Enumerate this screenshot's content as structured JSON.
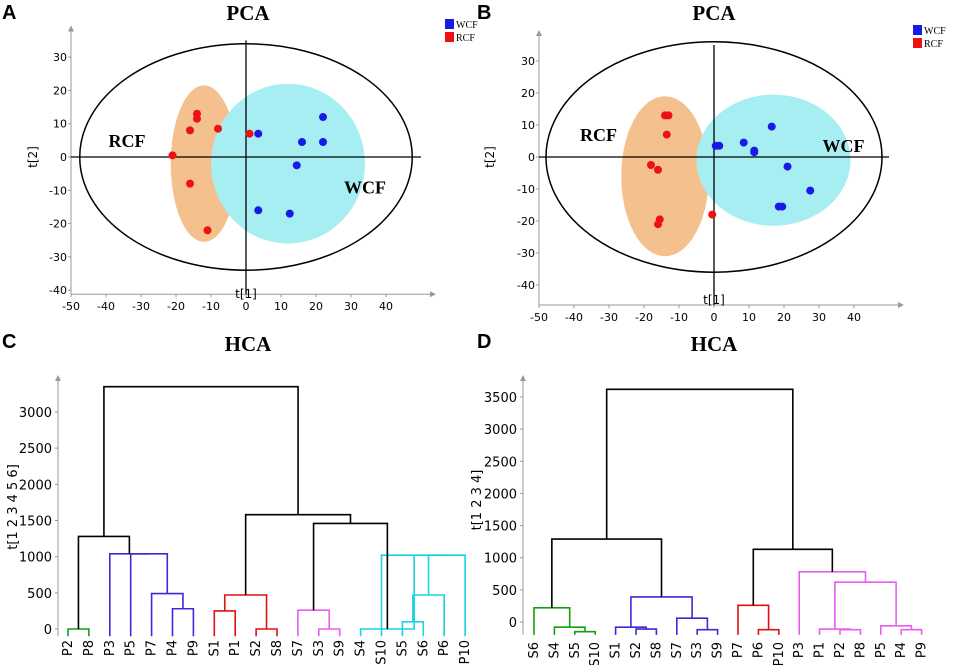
{
  "chart_data": [
    {
      "id": "A",
      "type": "scatter",
      "title": "PCA",
      "xlabel": "t[1]",
      "ylabel": "t[2]",
      "xlim": [
        -50,
        50
      ],
      "ylim": [
        -40,
        35
      ],
      "xticks": [
        -50,
        -40,
        -30,
        -20,
        -10,
        0,
        10,
        20,
        30,
        40
      ],
      "yticks": [
        -40,
        -30,
        -20,
        -10,
        0,
        10,
        20,
        30
      ],
      "legend": [
        {
          "name": "WCF",
          "color": "#1a1ae6"
        },
        {
          "name": "RCF",
          "color": "#ee1111"
        }
      ],
      "group_labels": [
        {
          "text": "RCF",
          "x": -34,
          "y": 3
        },
        {
          "text": "WCF",
          "x": 34,
          "y": -11
        }
      ],
      "hotelling": {
        "cx": 0,
        "cy": 0,
        "rx": 47.5,
        "ry": 34
      },
      "clusters": [
        {
          "color": "#f4c08e",
          "cx": -12,
          "cy": -2,
          "rx": 9.5,
          "ry": 23.5
        },
        {
          "color": "#a7eef2",
          "cx": 12,
          "cy": -2,
          "rx": 22,
          "ry": 24
        }
      ],
      "series": [
        {
          "name": "WCF",
          "color": "#1a1ae6",
          "points": [
            [
              3.5,
              7
            ],
            [
              16,
              4.5
            ],
            [
              22,
              12
            ],
            [
              22,
              4.5
            ],
            [
              14.5,
              -2.5
            ],
            [
              3.5,
              -16
            ],
            [
              12.5,
              -17
            ]
          ]
        },
        {
          "name": "RCF",
          "color": "#ee1111",
          "points": [
            [
              -14,
              13
            ],
            [
              -14,
              11.5
            ],
            [
              -16,
              8
            ],
            [
              -8,
              8.5
            ],
            [
              1,
              7
            ],
            [
              -21,
              0.5
            ],
            [
              -16,
              -8
            ],
            [
              -11,
              -22
            ]
          ]
        }
      ]
    },
    {
      "id": "B",
      "type": "scatter",
      "title": "PCA",
      "xlabel": "t[1]",
      "ylabel": "t[2]",
      "xlim": [
        -50,
        50
      ],
      "ylim": [
        -45,
        35
      ],
      "xticks": [
        -50,
        -40,
        -30,
        -20,
        -10,
        0,
        10,
        20,
        30,
        40
      ],
      "yticks": [
        -40,
        -30,
        -20,
        -10,
        0,
        10,
        20,
        30
      ],
      "legend": [
        {
          "name": "WCF",
          "color": "#1a1ae6"
        },
        {
          "name": "RCF",
          "color": "#ee1111"
        }
      ],
      "group_labels": [
        {
          "text": "RCF",
          "x": -33,
          "y": 5
        },
        {
          "text": "WCF",
          "x": 37,
          "y": 1.5
        }
      ],
      "hotelling": {
        "cx": 0,
        "cy": 0,
        "rx": 48,
        "ry": 36
      },
      "clusters": [
        {
          "color": "#f4c08e",
          "cx": -14,
          "cy": -6,
          "rx": 12.5,
          "ry": 25
        },
        {
          "color": "#a7eef2",
          "cx": 17,
          "cy": -1,
          "rx": 22,
          "ry": 20.5
        }
      ],
      "series": [
        {
          "name": "WCF",
          "color": "#1a1ae6",
          "points": [
            [
              0.5,
              3.5
            ],
            [
              1.5,
              3.5
            ],
            [
              8.5,
              4.5
            ],
            [
              11.5,
              2
            ],
            [
              11.5,
              1.5
            ],
            [
              16.5,
              9.5
            ],
            [
              21,
              -3
            ],
            [
              27.5,
              -10.5
            ],
            [
              19.5,
              -15.5
            ],
            [
              18.5,
              -15.5
            ]
          ]
        },
        {
          "name": "RCF",
          "color": "#ee1111",
          "points": [
            [
              -14,
              13
            ],
            [
              -13,
              13
            ],
            [
              -13.5,
              7
            ],
            [
              -18,
              -2.5
            ],
            [
              -16,
              -4
            ],
            [
              -15.5,
              -19.5
            ],
            [
              -16,
              -21
            ],
            [
              -0.5,
              -18
            ]
          ]
        }
      ]
    },
    {
      "id": "C",
      "type": "dendrogram",
      "title": "HCA",
      "ylabel": "t[1 2 3 4 5 6]",
      "ylim": [
        -100,
        3400
      ],
      "yticks": [
        0,
        500,
        1000,
        1500,
        2000,
        2500,
        3000
      ],
      "leaves": [
        "P2",
        "P8",
        "P3",
        "P5",
        "P7",
        "P4",
        "P9",
        "S1",
        "P1",
        "S2",
        "S8",
        "S7",
        "S3",
        "S9",
        "S4",
        "S10",
        "S5",
        "S6",
        "P6",
        "P10"
      ],
      "links": [
        {
          "a": 0,
          "b": 1,
          "h": 0,
          "color": "#12a012"
        },
        {
          "a": 5,
          "b": 6,
          "h": 280,
          "color": "#3b2bd6"
        },
        {
          "a": 4,
          "b": "L1",
          "h": 490,
          "color": "#3b2bd6"
        },
        {
          "a": 3,
          "b": "L2",
          "h": 1040,
          "color": "#3b2bd6"
        },
        {
          "a": 2,
          "b": "L3",
          "h": 1040,
          "color": "#3b2bd6"
        },
        {
          "a": "L0",
          "b": "L4",
          "h": 1280,
          "color": "#000000"
        },
        {
          "a": 7,
          "b": 8,
          "h": 250,
          "color": "#e01010"
        },
        {
          "a": 9,
          "b": 10,
          "h": 0,
          "color": "#e01010"
        },
        {
          "a": "L6",
          "b": "L7",
          "h": 470,
          "color": "#e01010"
        },
        {
          "a": 12,
          "b": 13,
          "h": 0,
          "color": "#e85ef0"
        },
        {
          "a": 11,
          "b": "L9",
          "h": 260,
          "color": "#e85ef0"
        },
        {
          "a": 16,
          "b": 17,
          "h": 100,
          "color": "#18d4e0"
        },
        {
          "a": "L11",
          "b": 18,
          "h": 470,
          "color": "#18d4e0"
        },
        {
          "a": "L12",
          "b": 19,
          "h": 1020,
          "color": "#18d4e0"
        },
        {
          "a": 15,
          "b": "L13",
          "h": 1020,
          "color": "#18d4e0"
        },
        {
          "a": 14,
          "b": "L14",
          "h": 0,
          "color": "#18d4e0"
        },
        {
          "a": "L10",
          "b": "L15",
          "h": 1460,
          "color": "#000000"
        },
        {
          "a": "L8",
          "b": "L16",
          "h": 1580,
          "color": "#000000"
        },
        {
          "a": "L5",
          "b": "L17",
          "h": 3350,
          "color": "#000000"
        }
      ]
    },
    {
      "id": "D",
      "type": "dendrogram",
      "title": "HCA",
      "ylabel": "t[1 2 3 4]",
      "ylim": [
        -200,
        3750
      ],
      "yticks": [
        0,
        500,
        1000,
        1500,
        2000,
        2500,
        3000,
        3500
      ],
      "leaves": [
        "S6",
        "S4",
        "S5",
        "S10",
        "S1",
        "S2",
        "S8",
        "S7",
        "S3",
        "S9",
        "P7",
        "P6",
        "P10",
        "P3",
        "P1",
        "P2",
        "P8",
        "P5",
        "P4",
        "P9"
      ],
      "links": [
        {
          "a": 2,
          "b": 3,
          "h": -150,
          "color": "#12a012"
        },
        {
          "a": 1,
          "b": "L0",
          "h": -80,
          "color": "#12a012"
        },
        {
          "a": 0,
          "b": "L1",
          "h": 220,
          "color": "#12a012"
        },
        {
          "a": 5,
          "b": 6,
          "h": -110,
          "color": "#3b2bd6"
        },
        {
          "a": 4,
          "b": "L3",
          "h": -80,
          "color": "#3b2bd6"
        },
        {
          "a": 8,
          "b": 9,
          "h": -120,
          "color": "#3b2bd6"
        },
        {
          "a": 7,
          "b": "L5",
          "h": 60,
          "color": "#3b2bd6"
        },
        {
          "a": "L4",
          "b": "L6",
          "h": 390,
          "color": "#3b2bd6"
        },
        {
          "a": "L2",
          "b": "L7",
          "h": 1290,
          "color": "#000000"
        },
        {
          "a": 11,
          "b": 12,
          "h": -120,
          "color": "#e01010"
        },
        {
          "a": 10,
          "b": "L9",
          "h": 260,
          "color": "#e01010"
        },
        {
          "a": 15,
          "b": 16,
          "h": -120,
          "color": "#e85ef0"
        },
        {
          "a": 14,
          "b": "L11",
          "h": -110,
          "color": "#e85ef0"
        },
        {
          "a": 18,
          "b": 19,
          "h": -120,
          "color": "#e85ef0"
        },
        {
          "a": 17,
          "b": "L13",
          "h": -60,
          "color": "#e85ef0"
        },
        {
          "a": "L12",
          "b": "L14",
          "h": 620,
          "color": "#e85ef0"
        },
        {
          "a": 13,
          "b": "L15",
          "h": 780,
          "color": "#e85ef0"
        },
        {
          "a": "L10",
          "b": "L16",
          "h": 1130,
          "color": "#000000"
        },
        {
          "a": "L8",
          "b": "L17",
          "h": 3620,
          "color": "#000000"
        }
      ]
    }
  ]
}
